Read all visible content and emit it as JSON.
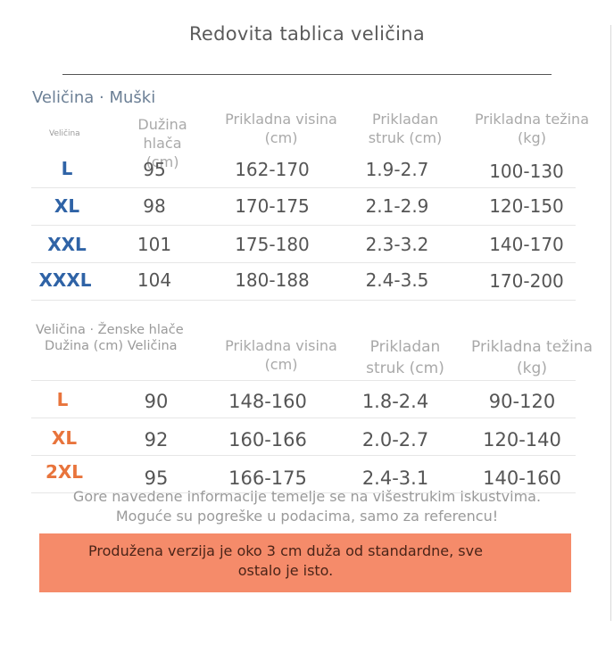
{
  "title": "Redovita tablica veličina",
  "men": {
    "header": "Veličina · Muški",
    "size_small_label": "Veličina",
    "columns": [
      "Dužina hlača (cm)",
      "Prikladna visina (cm)",
      "Prikladan struk (cm)",
      "Prikladna težina (kg)"
    ],
    "rows": [
      {
        "size": "L",
        "length": "95",
        "height": "162-170",
        "waist": "1.9-2.7",
        "weight": "100-130"
      },
      {
        "size": "XL",
        "length": "98",
        "height": "170-175",
        "waist": "2.1-2.9",
        "weight": "120-150"
      },
      {
        "size": "XXL",
        "length": "101",
        "height": "175-180",
        "waist": "2.3-3.2",
        "weight": "140-170"
      },
      {
        "size": "XXXL",
        "length": "104",
        "height": "180-188",
        "waist": "2.4-3.5",
        "weight": "170-200"
      }
    ]
  },
  "women": {
    "header": "Veličina · Ženske hlače",
    "subheader": "Dužina (cm) Veličina",
    "columns": [
      "Prikladna visina (cm)",
      "Prikladan struk (cm)",
      "Prikladna težina (kg)"
    ],
    "rows": [
      {
        "size": "L",
        "length": "90",
        "height": "148-160",
        "waist": "1.8-2.4",
        "weight": "90-120"
      },
      {
        "size": "XL",
        "length": "92",
        "height": "160-166",
        "waist": "2.0-2.7",
        "weight": "120-140"
      },
      {
        "size": "2XL",
        "length": "95",
        "height": "166-175",
        "waist": "2.4-3.1",
        "weight": "140-160"
      }
    ]
  },
  "note_line1": "Gore navedene informacije temelje se na višestrukim iskustvima.",
  "note_line2": "Moguće su pogreške u podacima, samo za referencu!",
  "banner": "Produžena verzija je oko 3 cm duža od standardne, sve ostalo je isto.",
  "colors": {
    "men_size": "#2f63a6",
    "women_size": "#e8743c",
    "banner_bg": "#f58b6a"
  }
}
